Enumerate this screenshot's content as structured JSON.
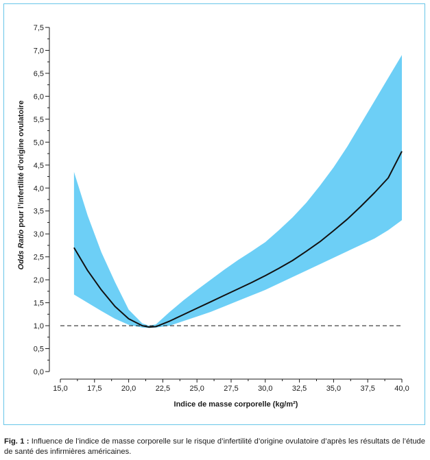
{
  "colors": {
    "band": "#6dcff6",
    "curve": "#111111",
    "frame": "#66c5e8",
    "reference": "#111111"
  },
  "chart_data": {
    "type": "line",
    "xlabel": "Indice de masse corporelle (kg/m²)",
    "ylabel_italic": "Odds Ratio",
    "ylabel_rest": " pour l’infertilité d’origine ovulatoire",
    "xlim": [
      15.0,
      40.0
    ],
    "ylim": [
      0.0,
      7.5
    ],
    "x_ticks": [
      "15,0",
      "17,5",
      "20,0",
      "22,5",
      "25,0",
      "27,5",
      "30,0",
      "32,5",
      "35,0",
      "37,5",
      "40,0"
    ],
    "y_ticks": [
      "0,0",
      "0,5",
      "1,0",
      "1,5",
      "2,0",
      "2,5",
      "3,0",
      "3,5",
      "4,0",
      "4,5",
      "5,0",
      "5,5",
      "6,0",
      "6,5",
      "7,0",
      "7,5"
    ],
    "x_tick_values": [
      15,
      17.5,
      20,
      22.5,
      25,
      27.5,
      30,
      32.5,
      35,
      37.5,
      40
    ],
    "y_tick_values": [
      0,
      0.5,
      1,
      1.5,
      2,
      2.5,
      3,
      3.5,
      4,
      4.5,
      5,
      5.5,
      6,
      6.5,
      7,
      7.5
    ],
    "reference_line": {
      "y": 1.0,
      "x": [
        15.0,
        40.0
      ],
      "style": "dashed"
    },
    "series": [
      {
        "x": [
          16,
          17,
          18,
          19,
          20,
          21,
          21.5,
          22,
          23,
          24,
          25,
          26,
          27,
          28,
          29,
          30,
          31,
          32,
          33,
          34,
          35,
          36,
          37,
          38,
          39,
          40
        ],
        "y": [
          2.7,
          2.2,
          1.78,
          1.42,
          1.15,
          1.0,
          0.97,
          0.98,
          1.1,
          1.24,
          1.38,
          1.52,
          1.66,
          1.8,
          1.94,
          2.09,
          2.25,
          2.42,
          2.62,
          2.83,
          3.07,
          3.32,
          3.6,
          3.9,
          4.22,
          4.8
        ]
      }
    ],
    "band": {
      "x": [
        16,
        17,
        18,
        19,
        20,
        21,
        21.5,
        22,
        23,
        24,
        25,
        26,
        27,
        28,
        29,
        30,
        31,
        32,
        33,
        34,
        35,
        36,
        37,
        38,
        39,
        40
      ],
      "upper": [
        4.35,
        3.4,
        2.6,
        1.95,
        1.35,
        1.05,
        1.0,
        1.03,
        1.3,
        1.55,
        1.78,
        2.0,
        2.22,
        2.43,
        2.62,
        2.82,
        3.08,
        3.36,
        3.68,
        4.05,
        4.45,
        4.9,
        5.4,
        5.9,
        6.4,
        6.9
      ],
      "lower": [
        1.68,
        1.5,
        1.32,
        1.15,
        1.02,
        0.96,
        0.95,
        0.96,
        1.0,
        1.1,
        1.2,
        1.3,
        1.42,
        1.54,
        1.66,
        1.78,
        1.92,
        2.06,
        2.2,
        2.34,
        2.48,
        2.62,
        2.76,
        2.9,
        3.08,
        3.3
      ]
    }
  },
  "caption": {
    "label": "Fig. 1 :",
    "text": " Influence de l’indice de masse corporelle sur le risque d’infertilité d’origine ovulatoire d’après les résultats de l’étude de santé des infirmières américaines."
  }
}
